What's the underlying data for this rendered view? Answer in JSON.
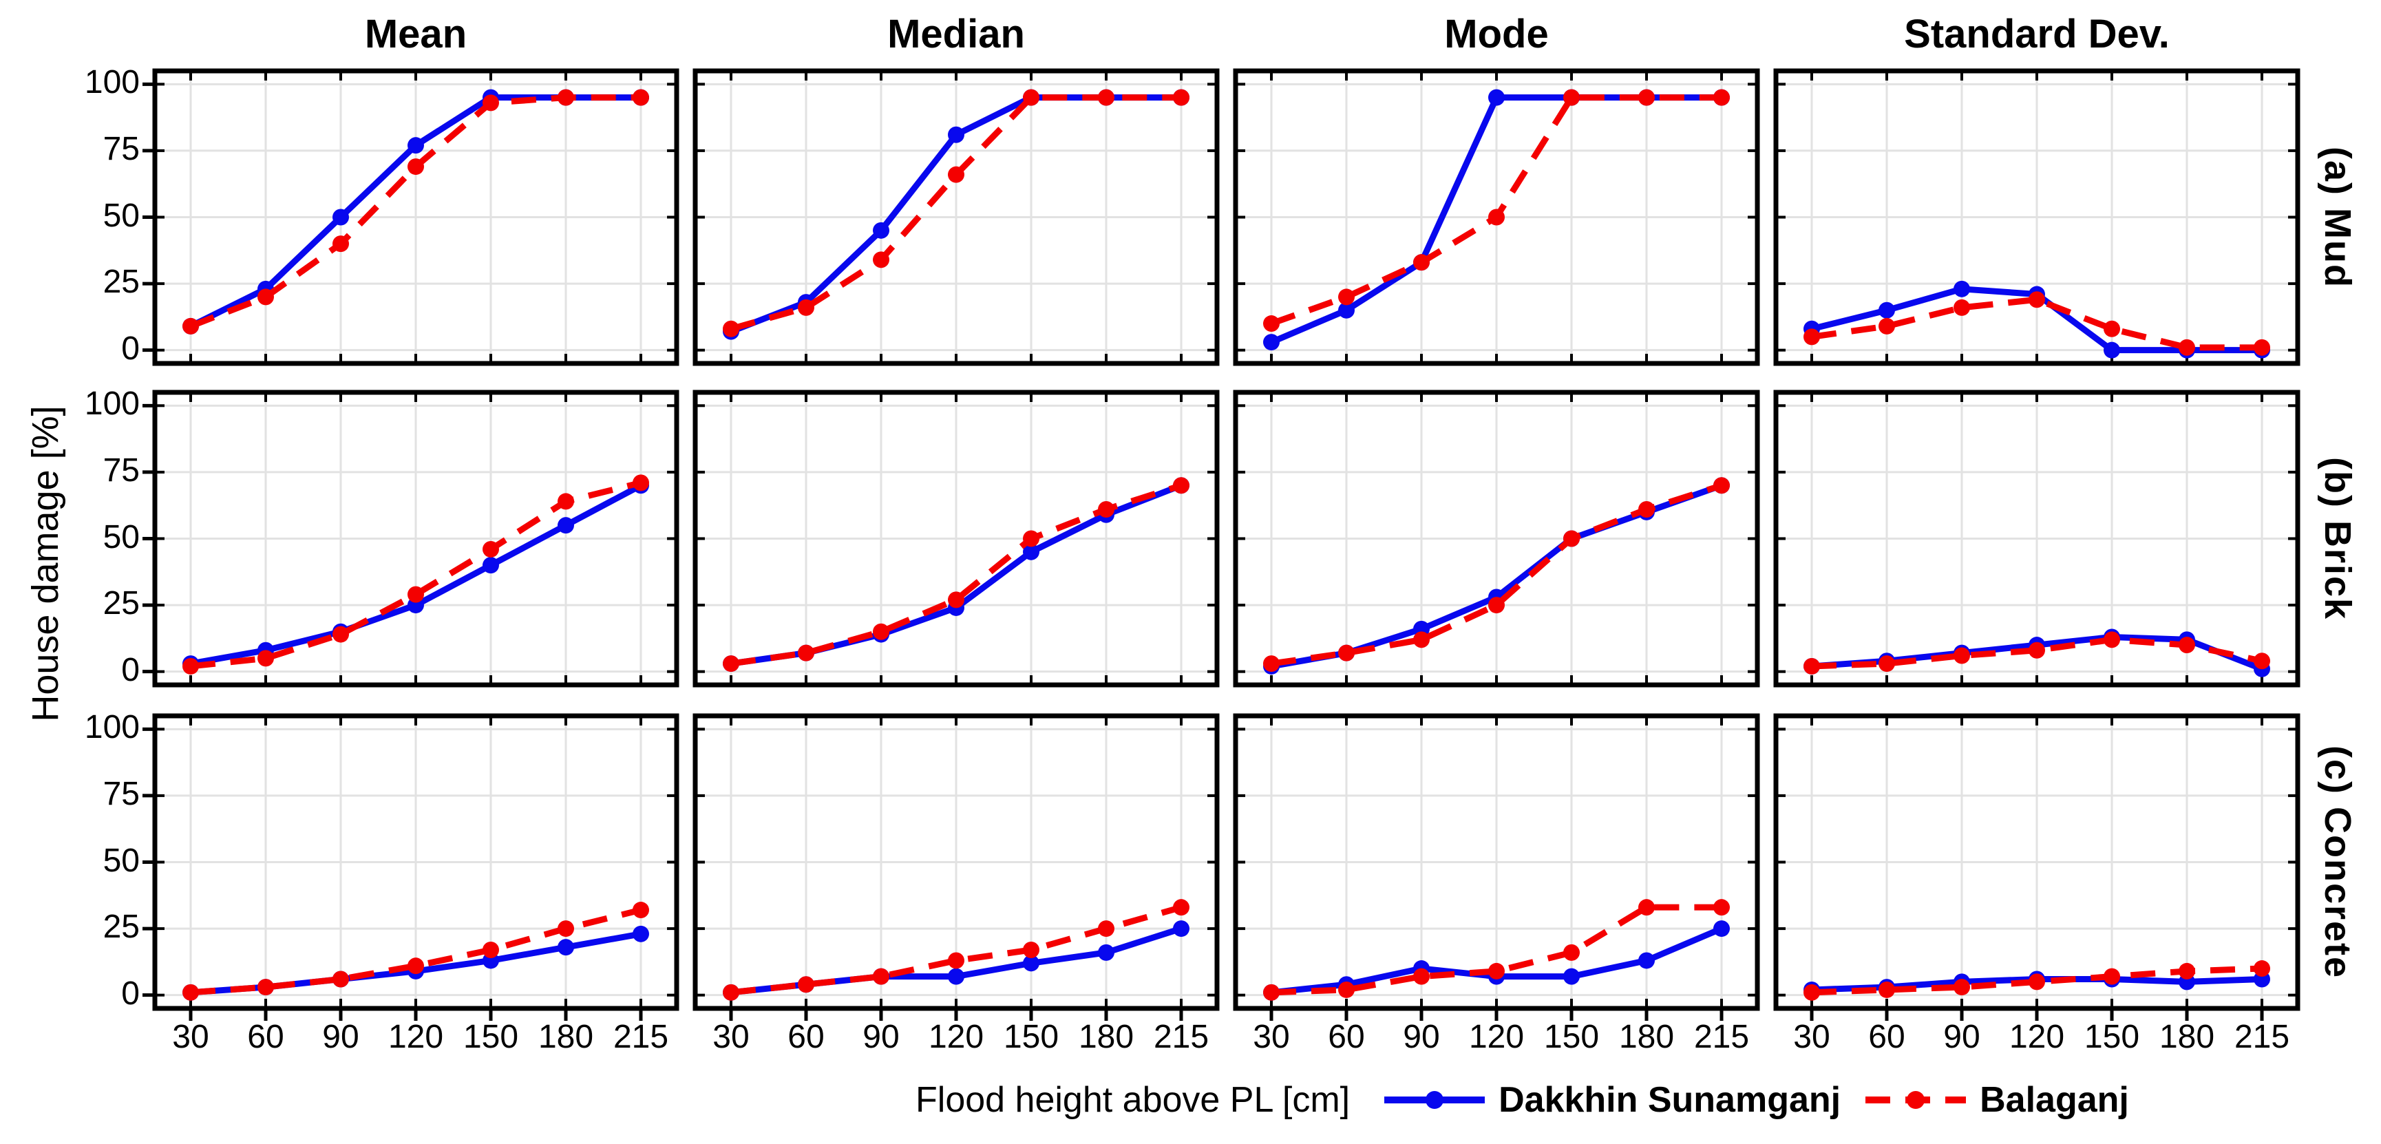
{
  "figure": {
    "column_titles": [
      "Mean",
      "Median",
      "Mode",
      "Standard Dev."
    ],
    "row_labels": [
      "(a) Mud",
      "(b) Brick",
      "(c) Concrete"
    ],
    "ylabel": "House damage [%]",
    "xlabel": "Flood height above PL [cm]",
    "legend": [
      {
        "name": "Dakkhin Sunamganj",
        "color": "#0808ee",
        "style": "solid"
      },
      {
        "name": "Balaganj",
        "color": "#f40000",
        "style": "dashed"
      }
    ],
    "grid_color": "#e2e2e2",
    "border_color": "#000000"
  },
  "axis": {
    "x_ticks": [
      30,
      60,
      90,
      120,
      150,
      180,
      215
    ],
    "y_ticks": [
      0,
      25,
      50,
      75,
      100
    ],
    "ylim": [
      -5,
      105
    ],
    "grid": true
  },
  "chart_data": [
    {
      "type": "line",
      "row": "(a) Mud",
      "column": "Mean",
      "x": [
        30,
        60,
        90,
        120,
        150,
        180,
        215
      ],
      "series": [
        {
          "name": "Dakkhin Sunamganj",
          "values": [
            9,
            23,
            50,
            77,
            95,
            95,
            95
          ]
        },
        {
          "name": "Balaganj",
          "values": [
            9,
            20,
            40,
            69,
            93,
            95,
            95
          ]
        }
      ]
    },
    {
      "type": "line",
      "row": "(a) Mud",
      "column": "Median",
      "x": [
        30,
        60,
        90,
        120,
        150,
        180,
        215
      ],
      "series": [
        {
          "name": "Dakkhin Sunamganj",
          "values": [
            7,
            18,
            45,
            81,
            95,
            95,
            95
          ]
        },
        {
          "name": "Balaganj",
          "values": [
            8,
            16,
            34,
            66,
            95,
            95,
            95
          ]
        }
      ]
    },
    {
      "type": "line",
      "row": "(a) Mud",
      "column": "Mode",
      "x": [
        30,
        60,
        90,
        120,
        150,
        180,
        215
      ],
      "series": [
        {
          "name": "Dakkhin Sunamganj",
          "values": [
            3,
            15,
            33,
            95,
            95,
            95,
            95
          ]
        },
        {
          "name": "Balaganj",
          "values": [
            10,
            20,
            33,
            50,
            95,
            95,
            95
          ]
        }
      ]
    },
    {
      "type": "line",
      "row": "(a) Mud",
      "column": "Standard Dev.",
      "x": [
        30,
        60,
        90,
        120,
        150,
        180,
        215
      ],
      "series": [
        {
          "name": "Dakkhin Sunamganj",
          "values": [
            8,
            15,
            23,
            21,
            0,
            0,
            0
          ]
        },
        {
          "name": "Balaganj",
          "values": [
            5,
            9,
            16,
            19,
            8,
            1,
            1
          ]
        }
      ]
    },
    {
      "type": "line",
      "row": "(b) Brick",
      "column": "Mean",
      "x": [
        30,
        60,
        90,
        120,
        150,
        180,
        215
      ],
      "series": [
        {
          "name": "Dakkhin Sunamganj",
          "values": [
            3,
            8,
            15,
            25,
            40,
            55,
            70
          ]
        },
        {
          "name": "Balaganj",
          "values": [
            2,
            5,
            14,
            29,
            46,
            64,
            71
          ]
        }
      ]
    },
    {
      "type": "line",
      "row": "(b) Brick",
      "column": "Median",
      "x": [
        30,
        60,
        90,
        120,
        150,
        180,
        215
      ],
      "series": [
        {
          "name": "Dakkhin Sunamganj",
          "values": [
            3,
            7,
            14,
            24,
            45,
            59,
            70
          ]
        },
        {
          "name": "Balaganj",
          "values": [
            3,
            7,
            15,
            27,
            50,
            61,
            70
          ]
        }
      ]
    },
    {
      "type": "line",
      "row": "(b) Brick",
      "column": "Mode",
      "x": [
        30,
        60,
        90,
        120,
        150,
        180,
        215
      ],
      "series": [
        {
          "name": "Dakkhin Sunamganj",
          "values": [
            2,
            7,
            16,
            28,
            50,
            60,
            70
          ]
        },
        {
          "name": "Balaganj",
          "values": [
            3,
            7,
            12,
            25,
            50,
            61,
            70
          ]
        }
      ]
    },
    {
      "type": "line",
      "row": "(b) Brick",
      "column": "Standard Dev.",
      "x": [
        30,
        60,
        90,
        120,
        150,
        180,
        215
      ],
      "series": [
        {
          "name": "Dakkhin Sunamganj",
          "values": [
            2,
            4,
            7,
            10,
            13,
            12,
            1
          ]
        },
        {
          "name": "Balaganj",
          "values": [
            2,
            3,
            6,
            8,
            12,
            10,
            4
          ]
        }
      ]
    },
    {
      "type": "line",
      "row": "(c) Concrete",
      "column": "Mean",
      "x": [
        30,
        60,
        90,
        120,
        150,
        180,
        215
      ],
      "series": [
        {
          "name": "Dakkhin Sunamganj",
          "values": [
            1,
            3,
            6,
            9,
            13,
            18,
            23
          ]
        },
        {
          "name": "Balaganj",
          "values": [
            1,
            3,
            6,
            11,
            17,
            25,
            32
          ]
        }
      ]
    },
    {
      "type": "line",
      "row": "(c) Concrete",
      "column": "Median",
      "x": [
        30,
        60,
        90,
        120,
        150,
        180,
        215
      ],
      "series": [
        {
          "name": "Dakkhin Sunamganj",
          "values": [
            1,
            4,
            7,
            7,
            12,
            16,
            25
          ]
        },
        {
          "name": "Balaganj",
          "values": [
            1,
            4,
            7,
            13,
            17,
            25,
            33
          ]
        }
      ]
    },
    {
      "type": "line",
      "row": "(c) Concrete",
      "column": "Mode",
      "x": [
        30,
        60,
        90,
        120,
        150,
        180,
        215
      ],
      "series": [
        {
          "name": "Dakkhin Sunamganj",
          "values": [
            1,
            4,
            10,
            7,
            7,
            13,
            25
          ]
        },
        {
          "name": "Balaganj",
          "values": [
            1,
            2,
            7,
            9,
            16,
            33,
            33
          ]
        }
      ]
    },
    {
      "type": "line",
      "row": "(c) Concrete",
      "column": "Standard Dev.",
      "x": [
        30,
        60,
        90,
        120,
        150,
        180,
        215
      ],
      "series": [
        {
          "name": "Dakkhin Sunamganj",
          "values": [
            2,
            3,
            5,
            6,
            6,
            5,
            6
          ]
        },
        {
          "name": "Balaganj",
          "values": [
            1,
            2,
            3,
            5,
            7,
            9,
            10
          ]
        }
      ]
    }
  ]
}
